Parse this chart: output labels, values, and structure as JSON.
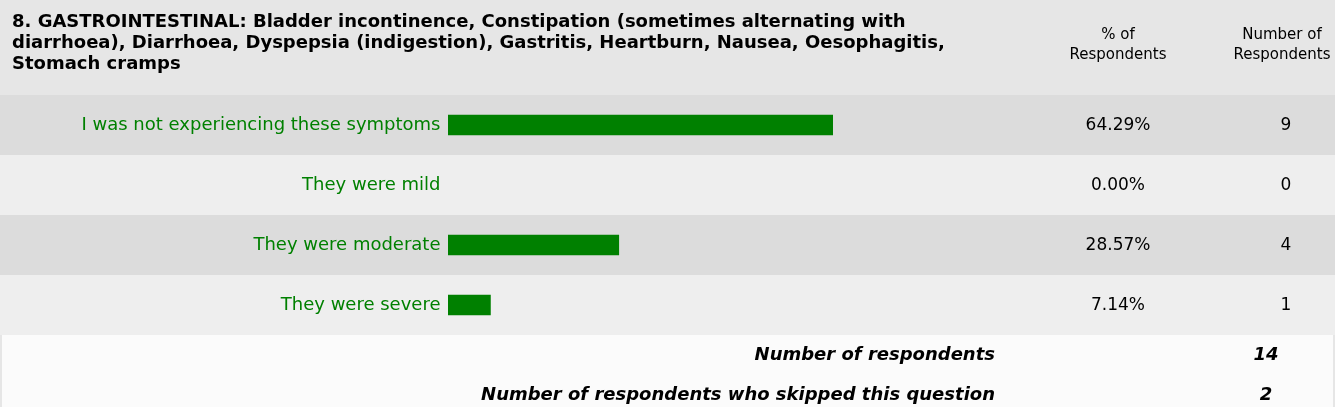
{
  "chart_data": {
    "type": "bar",
    "orientation": "horizontal",
    "title": "8. GASTROINTESTINAL: Bladder incontinence, Constipation (sometimes alternating with diarrhoea), Diarrhoea, Dyspepsia (indigestion), Gastritis, Heartburn, Nausea, Oesophagitis, Stomach cramps",
    "categories": [
      "I was not experiencing these symptoms",
      "They were mild",
      "They were moderate",
      "They were severe"
    ],
    "values": [
      64.29,
      0.0,
      28.57,
      7.14
    ],
    "value_labels": [
      "64.29%",
      "0.00%",
      "28.57%",
      "7.14%"
    ],
    "color": "#008000",
    "tick_labels": "y",
    "annotations": [
      "% of Respondents",
      "Number of Respondents",
      "9",
      "0",
      "4",
      "1",
      "Number of respondents",
      "14",
      "Number of respondents who skipped this question",
      "2"
    ]
  }
}
